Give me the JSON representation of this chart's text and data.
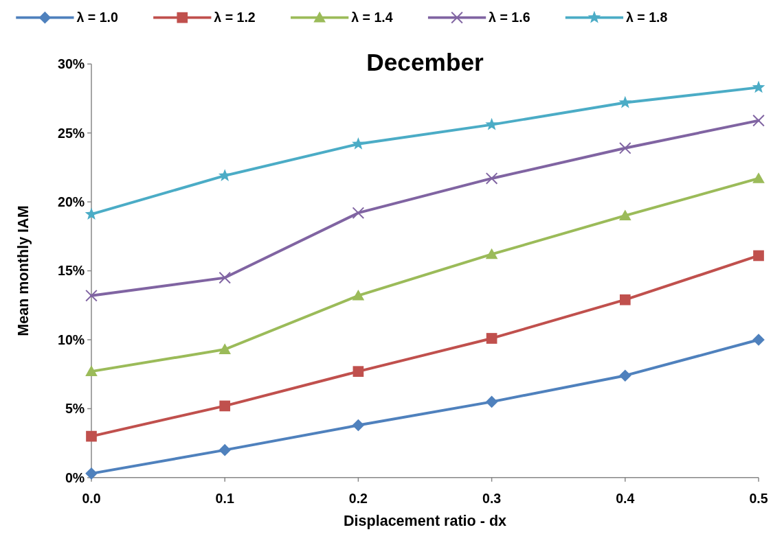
{
  "chart_data": {
    "type": "line",
    "title": "December",
    "xlabel": "Displacement ratio - dx",
    "ylabel": "Mean monthly IAM",
    "x": [
      0,
      0.1,
      0.2,
      0.3,
      0.4,
      0.5
    ],
    "xlim": [
      0,
      0.5
    ],
    "xticks": [
      {
        "value": 0,
        "label": "0.0"
      },
      0.1,
      0.2,
      0.3,
      0.4,
      0.5
    ],
    "ylim": [
      0,
      30
    ],
    "yticks": [
      {
        "value": 0,
        "label": "0%"
      },
      {
        "value": 5,
        "label": "5%"
      },
      {
        "value": 10,
        "label": "10%"
      },
      {
        "value": 15,
        "label": "15%"
      },
      {
        "value": 20,
        "label": "20%"
      },
      {
        "value": 25,
        "label": "25%"
      },
      {
        "value": 30,
        "label": "30%"
      }
    ],
    "grid": false,
    "legend": "top",
    "series": [
      {
        "name": "λ = 1.0",
        "color": "#4f81bd",
        "marker": "diamond",
        "values": [
          0.3,
          2.0,
          3.8,
          5.5,
          7.4,
          10.0
        ]
      },
      {
        "name": "λ = 1.2",
        "color": "#c0504d",
        "marker": "square",
        "values": [
          3.0,
          5.2,
          7.7,
          10.1,
          12.9,
          16.1
        ]
      },
      {
        "name": "λ = 1.4",
        "color": "#9bbb59",
        "marker": "triangle",
        "values": [
          7.7,
          9.3,
          13.2,
          16.2,
          19.0,
          21.7
        ]
      },
      {
        "name": "λ = 1.6",
        "color": "#8064a2",
        "marker": "cross",
        "values": [
          13.2,
          14.5,
          19.2,
          21.7,
          23.9,
          25.9
        ]
      },
      {
        "name": "λ = 1.8",
        "color": "#4bacc6",
        "marker": "star",
        "values": [
          19.1,
          21.9,
          24.2,
          25.6,
          27.2,
          28.3
        ]
      }
    ]
  }
}
